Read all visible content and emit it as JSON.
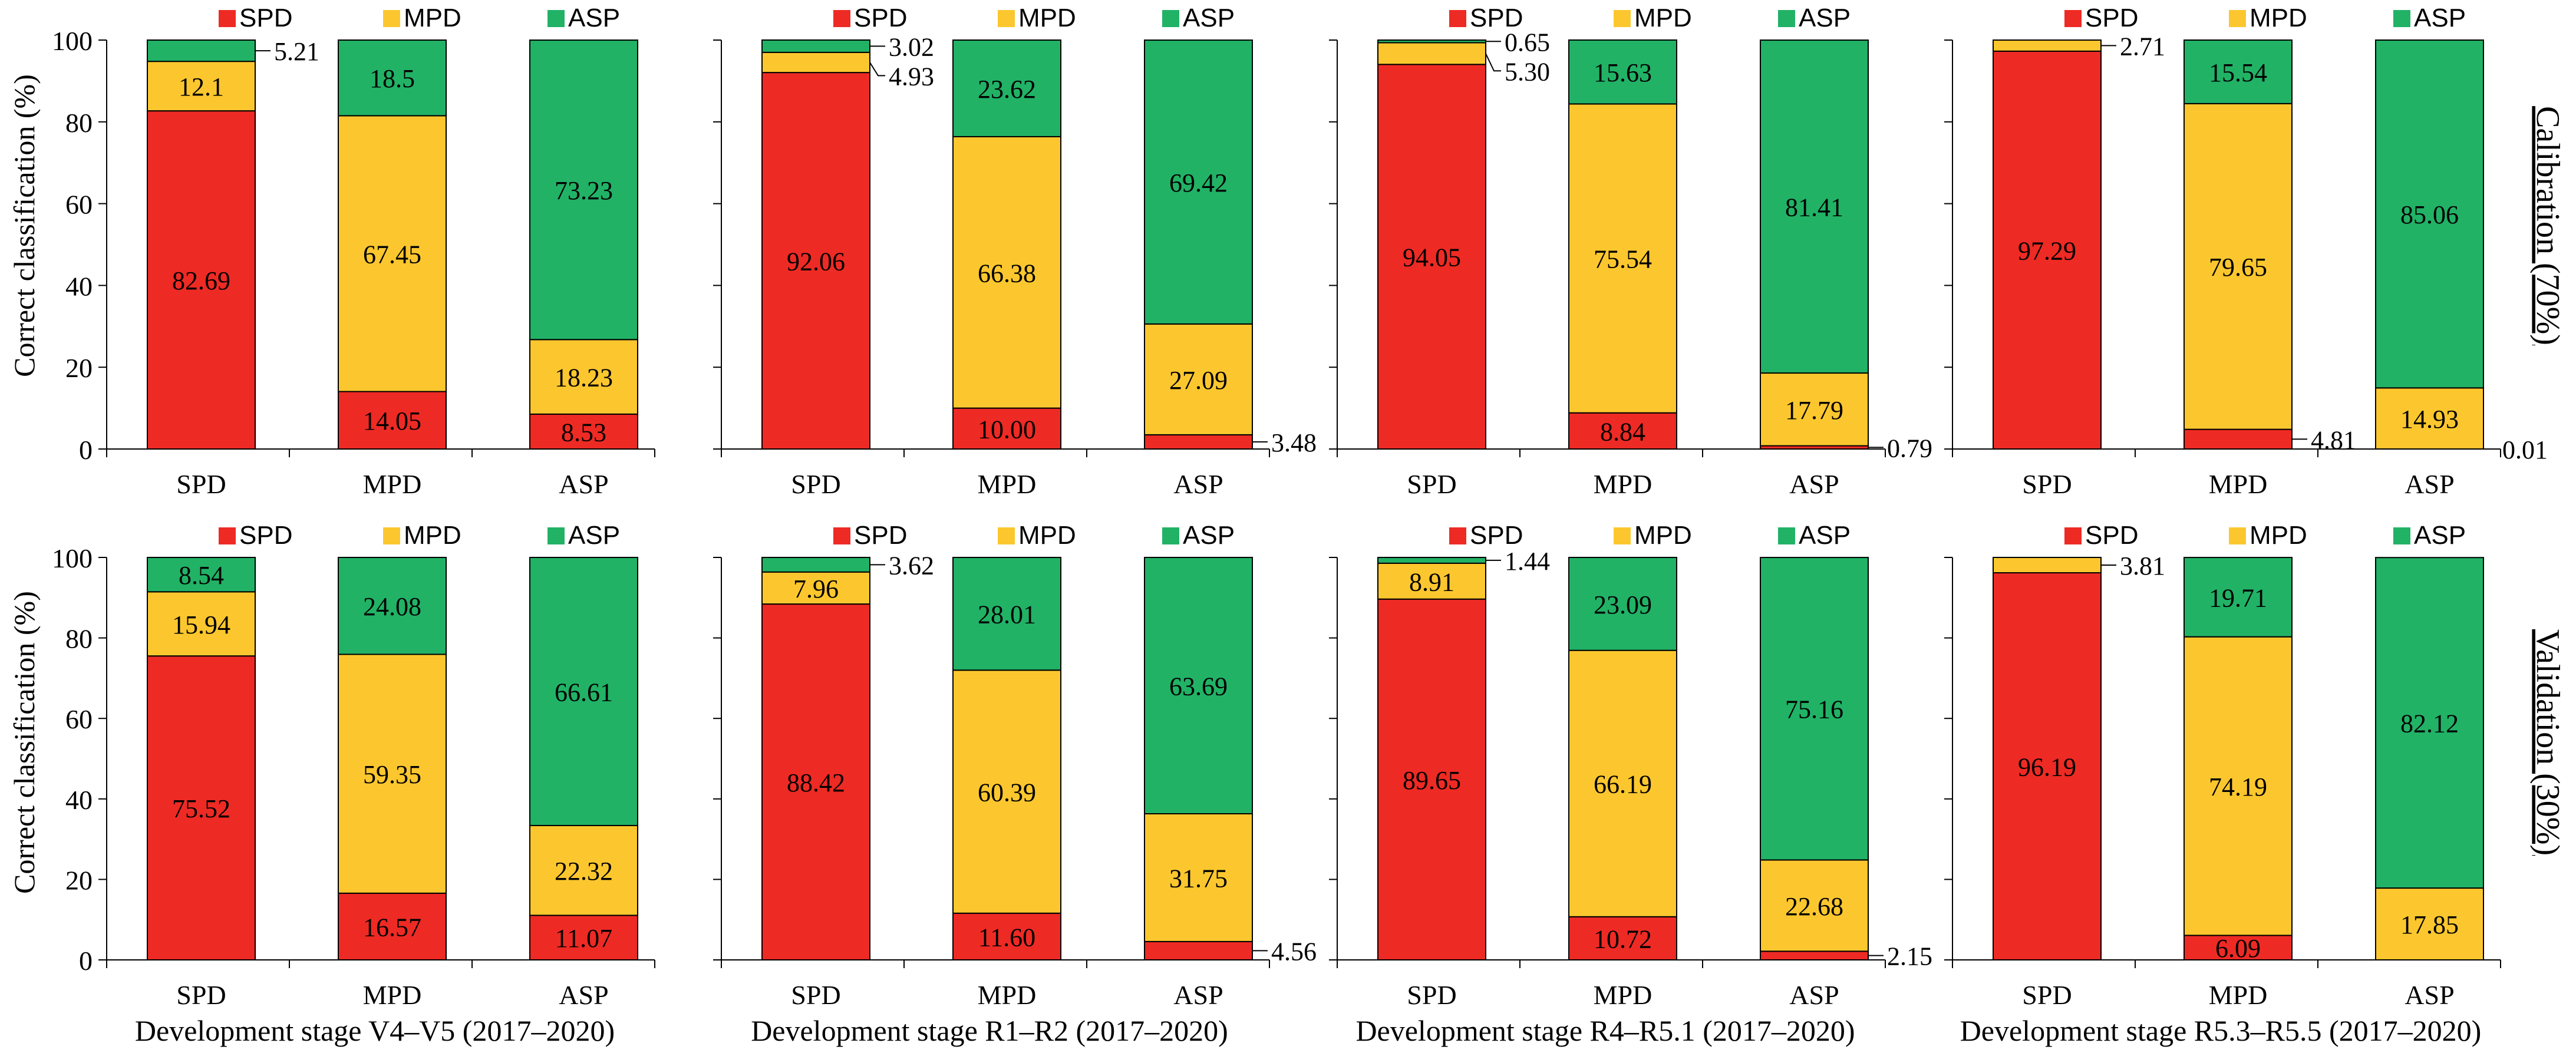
{
  "colors": {
    "SPD": "#ee2a24",
    "MPD": "#fcc72e",
    "ASP": "#21b266"
  },
  "legend": [
    "SPD",
    "MPD",
    "ASP"
  ],
  "ylabel": "Correct classification (%)",
  "y_ticks": [
    "0",
    "20",
    "40",
    "60",
    "80",
    "100"
  ],
  "row_labels": [
    "Calibration (70%)",
    "Validation (30%)"
  ],
  "chart_data": [
    {
      "type": "bar",
      "stacked": true,
      "row": "Calibration (70%)",
      "title": "Development stage V4–V5 (2017–2020)",
      "categories": [
        "SPD",
        "MPD",
        "ASP"
      ],
      "ylim": [
        0,
        100
      ],
      "ylabel": "Correct classification (%)",
      "series": [
        {
          "name": "SPD",
          "values": [
            82.69,
            14.05,
            8.53
          ]
        },
        {
          "name": "MPD",
          "values": [
            12.1,
            67.45,
            18.23
          ]
        },
        {
          "name": "ASP",
          "values": [
            5.21,
            18.5,
            73.23
          ]
        }
      ],
      "labels": [
        [
          "82.69",
          "12.1",
          "5.21"
        ],
        [
          "14.05",
          "67.45",
          "18.5"
        ],
        [
          "8.53",
          "18.23",
          "73.23"
        ]
      ]
    },
    {
      "type": "bar",
      "stacked": true,
      "row": "Calibration (70%)",
      "title": "Development stage R1–R2 (2017–2020)",
      "categories": [
        "SPD",
        "MPD",
        "ASP"
      ],
      "ylim": [
        0,
        100
      ],
      "series": [
        {
          "name": "SPD",
          "values": [
            92.06,
            10.0,
            3.48
          ]
        },
        {
          "name": "MPD",
          "values": [
            4.93,
            66.38,
            27.09
          ]
        },
        {
          "name": "ASP",
          "values": [
            3.02,
            23.62,
            69.42
          ]
        }
      ],
      "labels": [
        [
          "92.06",
          "4.93",
          "3.02"
        ],
        [
          "10.00",
          "66.38",
          "23.62"
        ],
        [
          "3.48",
          "27.09",
          "69.42"
        ]
      ]
    },
    {
      "type": "bar",
      "stacked": true,
      "row": "Calibration (70%)",
      "title": "Development stage R4–R5.1 (2017–2020)",
      "categories": [
        "SPD",
        "MPD",
        "ASP"
      ],
      "ylim": [
        0,
        100
      ],
      "series": [
        {
          "name": "SPD",
          "values": [
            94.05,
            8.84,
            0.79
          ]
        },
        {
          "name": "MPD",
          "values": [
            5.3,
            75.54,
            17.79
          ]
        },
        {
          "name": "ASP",
          "values": [
            0.65,
            15.63,
            81.41
          ]
        }
      ],
      "labels": [
        [
          "94.05",
          "5.30",
          "0.65"
        ],
        [
          "8.84",
          "75.54",
          "15.63"
        ],
        [
          "0.79",
          "17.79",
          "81.41"
        ]
      ]
    },
    {
      "type": "bar",
      "stacked": true,
      "row": "Calibration (70%)",
      "title": "Development stage R5.3–R5.5 (2017–2020)",
      "categories": [
        "SPD",
        "MPD",
        "ASP"
      ],
      "ylim": [
        0,
        100
      ],
      "series": [
        {
          "name": "SPD",
          "values": [
            97.29,
            4.81,
            0.01
          ]
        },
        {
          "name": "MPD",
          "values": [
            2.71,
            79.65,
            14.93
          ]
        },
        {
          "name": "ASP",
          "values": [
            0.0,
            15.54,
            85.06
          ]
        }
      ],
      "labels": [
        [
          "97.29",
          "2.71",
          ""
        ],
        [
          "4.81",
          "79.65",
          "15.54"
        ],
        [
          "0.01",
          "14.93",
          "85.06"
        ]
      ]
    },
    {
      "type": "bar",
      "stacked": true,
      "row": "Validation (30%)",
      "title": "Development stage V4–V5 (2017–2020)",
      "categories": [
        "SPD",
        "MPD",
        "ASP"
      ],
      "ylim": [
        0,
        100
      ],
      "series": [
        {
          "name": "SPD",
          "values": [
            75.52,
            16.57,
            11.07
          ]
        },
        {
          "name": "MPD",
          "values": [
            15.94,
            59.35,
            22.32
          ]
        },
        {
          "name": "ASP",
          "values": [
            8.54,
            24.08,
            66.61
          ]
        }
      ],
      "labels": [
        [
          "75.52",
          "15.94",
          "8.54"
        ],
        [
          "16.57",
          "59.35",
          "24.08"
        ],
        [
          "11.07",
          "22.32",
          "66.61"
        ]
      ]
    },
    {
      "type": "bar",
      "stacked": true,
      "row": "Validation (30%)",
      "title": "Development stage R1–R2 (2017–2020)",
      "categories": [
        "SPD",
        "MPD",
        "ASP"
      ],
      "ylim": [
        0,
        100
      ],
      "series": [
        {
          "name": "SPD",
          "values": [
            88.42,
            11.6,
            4.56
          ]
        },
        {
          "name": "MPD",
          "values": [
            7.96,
            60.39,
            31.75
          ]
        },
        {
          "name": "ASP",
          "values": [
            3.62,
            28.01,
            63.69
          ]
        }
      ],
      "labels": [
        [
          "88.42",
          "7.96",
          "3.62"
        ],
        [
          "11.60",
          "60.39",
          "28.01"
        ],
        [
          "4.56",
          "31.75",
          "63.69"
        ]
      ]
    },
    {
      "type": "bar",
      "stacked": true,
      "row": "Validation (30%)",
      "title": "Development stage R4–R5.1 (2017–2020)",
      "categories": [
        "SPD",
        "MPD",
        "ASP"
      ],
      "ylim": [
        0,
        100
      ],
      "series": [
        {
          "name": "SPD",
          "values": [
            89.65,
            10.72,
            2.15
          ]
        },
        {
          "name": "MPD",
          "values": [
            8.91,
            66.19,
            22.68
          ]
        },
        {
          "name": "ASP",
          "values": [
            1.44,
            23.09,
            75.16
          ]
        }
      ],
      "labels": [
        [
          "89.65",
          "8.91",
          "1.44"
        ],
        [
          "10.72",
          "66.19",
          "23.09"
        ],
        [
          "2.15",
          "22.68",
          "75.16"
        ]
      ]
    },
    {
      "type": "bar",
      "stacked": true,
      "row": "Validation (30%)",
      "title": "Development stage R5.3–R5.5 (2017–2020)",
      "categories": [
        "SPD",
        "MPD",
        "ASP"
      ],
      "ylim": [
        0,
        100
      ],
      "series": [
        {
          "name": "SPD",
          "values": [
            96.19,
            6.09,
            0.0
          ]
        },
        {
          "name": "MPD",
          "values": [
            3.81,
            74.19,
            17.85
          ]
        },
        {
          "name": "ASP",
          "values": [
            0.0,
            19.71,
            82.12
          ]
        }
      ],
      "labels": [
        [
          "96.19",
          "3.81",
          ""
        ],
        [
          "6.09",
          "74.19",
          "19.71"
        ],
        [
          "",
          "17.85",
          "82.12"
        ]
      ]
    }
  ]
}
